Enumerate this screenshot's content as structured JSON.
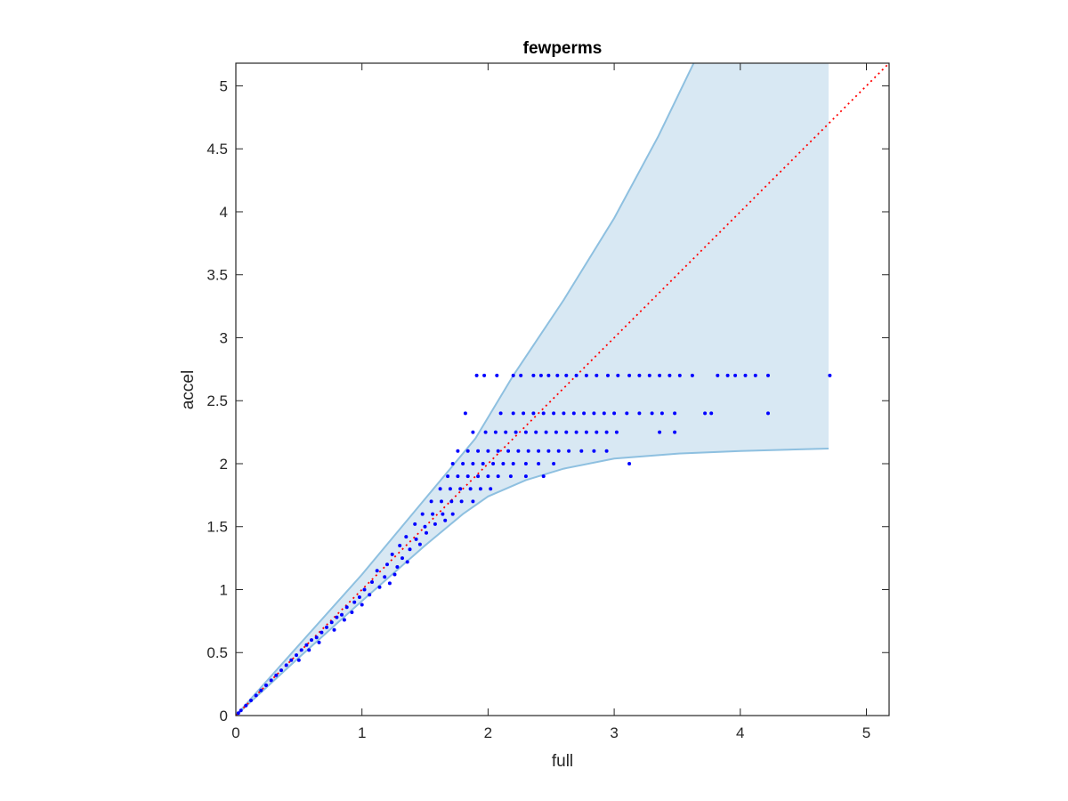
{
  "chart_data": {
    "type": "scatter",
    "title": "fewperms",
    "xlabel": "full",
    "ylabel": "accel",
    "xlim": [
      0,
      5.18
    ],
    "ylim": [
      0,
      5.18
    ],
    "xticks": [
      0,
      1,
      2,
      3,
      4,
      5
    ],
    "xtick_labels": [
      "0",
      "1",
      "2",
      "3",
      "4",
      "5"
    ],
    "yticks": [
      0,
      0.5,
      1,
      1.5,
      2,
      2.5,
      3,
      3.5,
      4,
      4.5,
      5
    ],
    "ytick_labels": [
      "0",
      "0.5",
      "1",
      "1.5",
      "2",
      "2.5",
      "3",
      "3.5",
      "4",
      "4.5",
      "5"
    ],
    "grid": false,
    "colors": {
      "points": "#0000ff",
      "band_fill": "#d8e8f3",
      "band_edge": "#8ec0e0",
      "identity": "#ff0000",
      "axes": "#262626"
    },
    "band": {
      "upper": [
        [
          0,
          0
        ],
        [
          0.5,
          0.56
        ],
        [
          1,
          1.12
        ],
        [
          1.5,
          1.72
        ],
        [
          1.9,
          2.2
        ],
        [
          2.2,
          2.7
        ],
        [
          2.6,
          3.3
        ],
        [
          3.0,
          3.95
        ],
        [
          3.35,
          4.6
        ],
        [
          3.63,
          5.18
        ]
      ],
      "lower": [
        [
          0,
          0
        ],
        [
          0.5,
          0.46
        ],
        [
          1,
          0.91
        ],
        [
          1.5,
          1.35
        ],
        [
          1.8,
          1.6
        ],
        [
          2.0,
          1.74
        ],
        [
          2.3,
          1.87
        ],
        [
          2.6,
          1.96
        ],
        [
          3.0,
          2.04
        ],
        [
          3.5,
          2.08
        ],
        [
          4.0,
          2.1
        ],
        [
          4.7,
          2.12
        ]
      ],
      "right_x": 4.7
    },
    "identity_line": {
      "style": "dotted",
      "from": [
        0,
        0
      ],
      "to": [
        5.18,
        5.18
      ]
    },
    "series": [
      {
        "values": [
          [
            1.91,
            2.7
          ],
          [
            1.97,
            2.7
          ],
          [
            2.07,
            2.7
          ],
          [
            2.2,
            2.7
          ],
          [
            2.26,
            2.7
          ],
          [
            2.36,
            2.7
          ],
          [
            2.42,
            2.7
          ],
          [
            2.48,
            2.7
          ],
          [
            2.55,
            2.7
          ],
          [
            2.62,
            2.7
          ],
          [
            2.7,
            2.7
          ],
          [
            2.78,
            2.7
          ],
          [
            2.86,
            2.7
          ],
          [
            2.95,
            2.7
          ],
          [
            3.03,
            2.7
          ],
          [
            3.12,
            2.7
          ],
          [
            3.2,
            2.7
          ],
          [
            3.28,
            2.7
          ],
          [
            3.36,
            2.7
          ],
          [
            3.44,
            2.7
          ],
          [
            3.52,
            2.7
          ],
          [
            3.62,
            2.7
          ],
          [
            3.82,
            2.7
          ],
          [
            3.9,
            2.7
          ],
          [
            3.96,
            2.7
          ],
          [
            4.04,
            2.7
          ],
          [
            4.12,
            2.7
          ],
          [
            4.22,
            2.7
          ],
          [
            4.71,
            2.7
          ],
          [
            1.82,
            2.4
          ],
          [
            2.1,
            2.4
          ],
          [
            2.2,
            2.4
          ],
          [
            2.28,
            2.4
          ],
          [
            2.36,
            2.4
          ],
          [
            2.44,
            2.4
          ],
          [
            2.52,
            2.4
          ],
          [
            2.6,
            2.4
          ],
          [
            2.68,
            2.4
          ],
          [
            2.76,
            2.4
          ],
          [
            2.84,
            2.4
          ],
          [
            2.92,
            2.4
          ],
          [
            3.0,
            2.4
          ],
          [
            3.1,
            2.4
          ],
          [
            3.2,
            2.4
          ],
          [
            3.3,
            2.4
          ],
          [
            3.38,
            2.4
          ],
          [
            3.48,
            2.4
          ],
          [
            3.72,
            2.4
          ],
          [
            3.77,
            2.4
          ],
          [
            4.22,
            2.4
          ],
          [
            1.88,
            2.25
          ],
          [
            1.98,
            2.25
          ],
          [
            2.06,
            2.25
          ],
          [
            2.14,
            2.25
          ],
          [
            2.22,
            2.25
          ],
          [
            2.3,
            2.25
          ],
          [
            2.38,
            2.25
          ],
          [
            2.46,
            2.25
          ],
          [
            2.54,
            2.25
          ],
          [
            2.62,
            2.25
          ],
          [
            2.7,
            2.25
          ],
          [
            2.78,
            2.25
          ],
          [
            2.86,
            2.25
          ],
          [
            2.94,
            2.25
          ],
          [
            3.02,
            2.25
          ],
          [
            3.36,
            2.25
          ],
          [
            3.48,
            2.25
          ],
          [
            1.76,
            2.1
          ],
          [
            1.84,
            2.1
          ],
          [
            1.92,
            2.1
          ],
          [
            2.0,
            2.1
          ],
          [
            2.08,
            2.1
          ],
          [
            2.16,
            2.1
          ],
          [
            2.24,
            2.1
          ],
          [
            2.32,
            2.1
          ],
          [
            2.4,
            2.1
          ],
          [
            2.48,
            2.1
          ],
          [
            2.56,
            2.1
          ],
          [
            2.64,
            2.1
          ],
          [
            2.74,
            2.1
          ],
          [
            2.84,
            2.1
          ],
          [
            2.94,
            2.1
          ],
          [
            1.72,
            2.0
          ],
          [
            1.8,
            2.0
          ],
          [
            1.88,
            2.0
          ],
          [
            1.96,
            2.0
          ],
          [
            2.04,
            2.0
          ],
          [
            2.12,
            2.0
          ],
          [
            2.2,
            2.0
          ],
          [
            2.3,
            2.0
          ],
          [
            2.4,
            2.0
          ],
          [
            2.52,
            2.0
          ],
          [
            3.12,
            2.0
          ],
          [
            1.68,
            1.9
          ],
          [
            1.76,
            1.9
          ],
          [
            1.84,
            1.9
          ],
          [
            1.92,
            1.9
          ],
          [
            2.0,
            1.9
          ],
          [
            2.08,
            1.9
          ],
          [
            2.18,
            1.9
          ],
          [
            2.3,
            1.9
          ],
          [
            2.44,
            1.9
          ],
          [
            1.62,
            1.8
          ],
          [
            1.7,
            1.8
          ],
          [
            1.78,
            1.8
          ],
          [
            1.86,
            1.8
          ],
          [
            1.94,
            1.8
          ],
          [
            2.02,
            1.8
          ],
          [
            1.55,
            1.7
          ],
          [
            1.63,
            1.7
          ],
          [
            1.71,
            1.7
          ],
          [
            1.79,
            1.7
          ],
          [
            1.88,
            1.7
          ],
          [
            1.48,
            1.6
          ],
          [
            1.56,
            1.6
          ],
          [
            1.64,
            1.6
          ],
          [
            1.72,
            1.6
          ],
          [
            1.42,
            1.52
          ],
          [
            1.5,
            1.5
          ],
          [
            1.58,
            1.52
          ],
          [
            1.66,
            1.55
          ],
          [
            1.35,
            1.42
          ],
          [
            1.43,
            1.4
          ],
          [
            1.51,
            1.45
          ],
          [
            1.3,
            1.35
          ],
          [
            1.38,
            1.32
          ],
          [
            1.46,
            1.36
          ],
          [
            1.24,
            1.28
          ],
          [
            1.32,
            1.25
          ],
          [
            1.2,
            1.2
          ],
          [
            1.28,
            1.18
          ],
          [
            1.36,
            1.22
          ],
          [
            1.12,
            1.15
          ],
          [
            1.18,
            1.1
          ],
          [
            1.26,
            1.12
          ],
          [
            1.08,
            1.06
          ],
          [
            1.14,
            1.02
          ],
          [
            1.22,
            1.05
          ],
          [
            1.02,
            1.0
          ],
          [
            1.06,
            0.96
          ],
          [
            0.98,
            0.94
          ],
          [
            0.94,
            0.9
          ],
          [
            1.0,
            0.88
          ],
          [
            0.88,
            0.86
          ],
          [
            0.92,
            0.82
          ],
          [
            0.84,
            0.8
          ],
          [
            0.8,
            0.78
          ],
          [
            0.86,
            0.76
          ],
          [
            0.76,
            0.74
          ],
          [
            0.72,
            0.7
          ],
          [
            0.78,
            0.68
          ],
          [
            0.68,
            0.66
          ],
          [
            0.64,
            0.62
          ],
          [
            0.6,
            0.6
          ],
          [
            0.66,
            0.58
          ],
          [
            0.56,
            0.56
          ],
          [
            0.52,
            0.52
          ],
          [
            0.58,
            0.52
          ],
          [
            0.48,
            0.48
          ],
          [
            0.44,
            0.44
          ],
          [
            0.5,
            0.44
          ],
          [
            0.4,
            0.4
          ],
          [
            0.36,
            0.36
          ],
          [
            0.32,
            0.32
          ],
          [
            0.28,
            0.28
          ],
          [
            0.24,
            0.24
          ],
          [
            0.2,
            0.2
          ],
          [
            0.16,
            0.16
          ],
          [
            0.12,
            0.12
          ],
          [
            0.08,
            0.08
          ],
          [
            0.04,
            0.04
          ],
          [
            0.02,
            0.02
          ]
        ]
      }
    ]
  }
}
